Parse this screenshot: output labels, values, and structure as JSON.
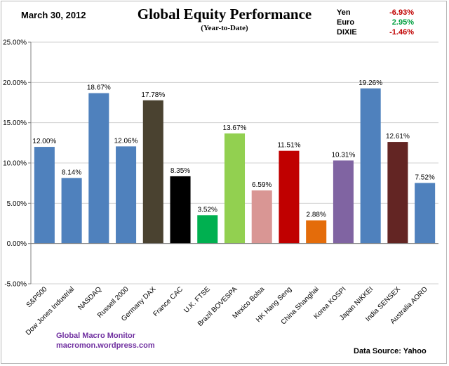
{
  "header": {
    "date": "March 30, 2012",
    "title": "Global Equity Performance",
    "subtitle": "(Year-to-Date)"
  },
  "fx": [
    {
      "name": "Yen",
      "value": "-6.93%",
      "color": "#c00000"
    },
    {
      "name": "Euro",
      "value": "2.95%",
      "color": "#00a040"
    },
    {
      "name": "DIXIE",
      "value": "-1.46%",
      "color": "#c00000"
    }
  ],
  "footer": {
    "brand_line1": "Global  Macro  Monitor",
    "brand_line2": "macromon.wordpress.com",
    "source": "Data Source:   Yahoo"
  },
  "chart_data": {
    "type": "bar",
    "categories": [
      "S&P500",
      "Dow Jones Industrial",
      "NASDAQ",
      "Russell 2000",
      "Germany DAX",
      "France CAC",
      "U.K. FTSE",
      "Brazil BOVESPA",
      "Mexico Bolsa",
      "HK Hang Seng",
      "China Shanghai",
      "Korea KOSPI",
      "Japan NIKKEI",
      "India SENSEX",
      "Australia AORD"
    ],
    "values": [
      12.0,
      8.14,
      18.67,
      12.06,
      17.78,
      8.35,
      3.52,
      13.67,
      6.59,
      11.51,
      2.88,
      10.31,
      19.26,
      12.61,
      7.52
    ],
    "labels": [
      "12.00%",
      "8.14%",
      "18.67%",
      "12.06%",
      "17.78%",
      "8.35%",
      "3.52%",
      "13.67%",
      "6.59%",
      "11.51%",
      "2.88%",
      "10.31%",
      "19.26%",
      "12.61%",
      "7.52%"
    ],
    "colors": [
      "#4f81bd",
      "#4f81bd",
      "#4f81bd",
      "#4f81bd",
      "#4a4230",
      "#000000",
      "#00b050",
      "#92d050",
      "#d99694",
      "#c00000",
      "#e46c0a",
      "#8064a2",
      "#4f81bd",
      "#632523",
      "#4f81bd"
    ],
    "ylim": [
      -5,
      25
    ],
    "yticks": [
      -5,
      0,
      5,
      10,
      15,
      20,
      25
    ],
    "ytick_labels": [
      "-5.00%",
      "0.00%",
      "5.00%",
      "10.00%",
      "15.00%",
      "20.00%",
      "25.00%"
    ],
    "grid": true,
    "legend": "none"
  }
}
